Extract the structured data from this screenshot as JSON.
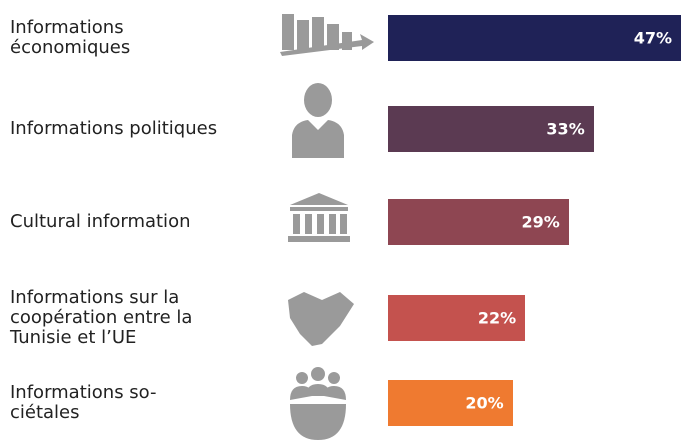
{
  "chart_data": {
    "type": "bar",
    "orientation": "horizontal",
    "categories": [
      "Informations\néconomiques",
      "Informations politiques",
      "Cultural information",
      "Informations sur la\ncoopération entre la\nTunisie et l’UE",
      "Informations so-\nciétales"
    ],
    "values": [
      47,
      33,
      29,
      22,
      20
    ],
    "value_labels": [
      "47%",
      "33%",
      "29%",
      "22%",
      "20%"
    ],
    "colors": [
      "#1f2257",
      "#5b3a52",
      "#8e4652",
      "#c4524e",
      "#ef7a30"
    ]
  }
}
